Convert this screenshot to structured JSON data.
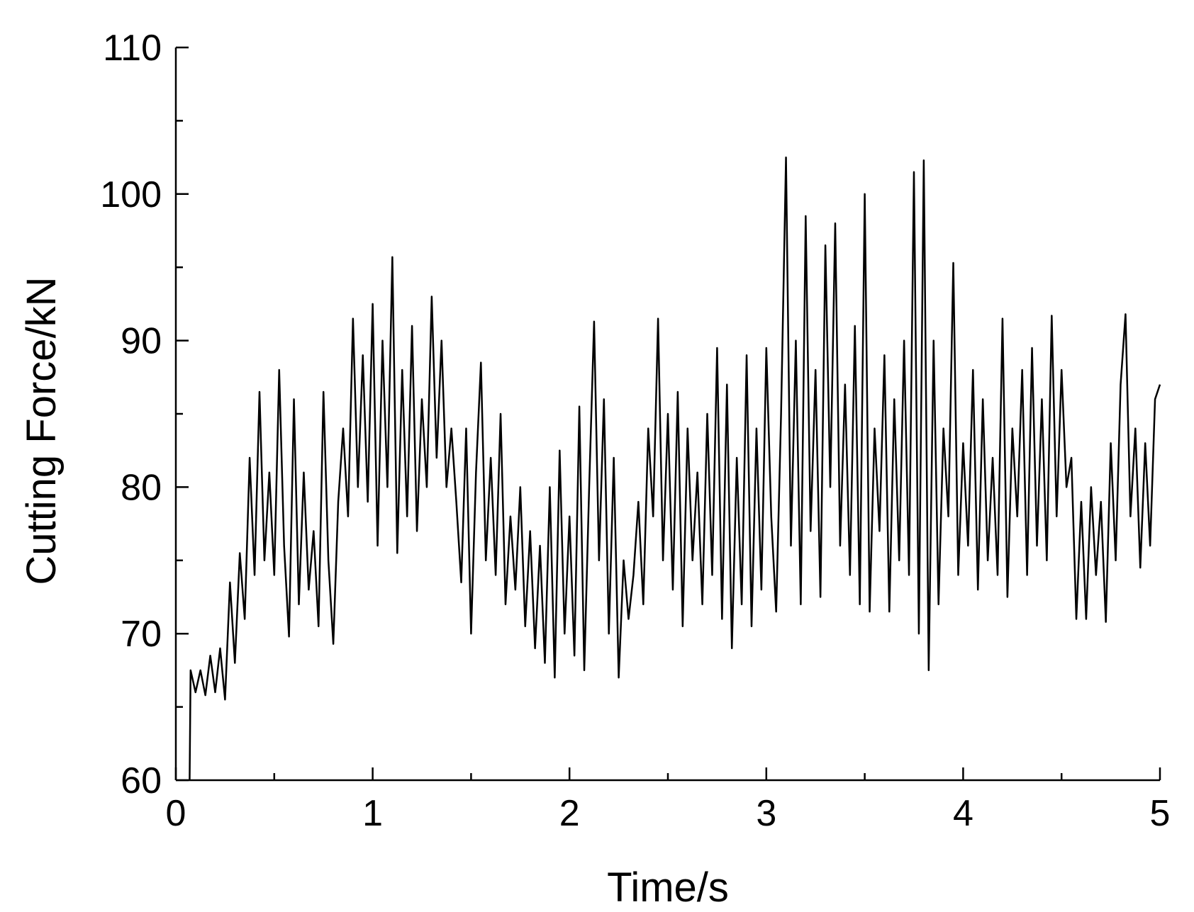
{
  "chart_data": {
    "type": "line",
    "x_label": "Time/s",
    "y_label": "Cutting Force/kN",
    "xlim": [
      0,
      5
    ],
    "ylim": [
      60,
      110
    ],
    "xticks": [
      0,
      1,
      2,
      3,
      4,
      5
    ],
    "yticks": [
      60,
      70,
      80,
      90,
      100,
      110
    ],
    "xminorticks": [
      0.5,
      1.5,
      2.5,
      3.5,
      4.5
    ],
    "yminorticks": [
      65,
      75,
      85,
      95,
      105
    ],
    "color": "#000000",
    "x": [
      0.07,
      0.075,
      0.1,
      0.125,
      0.15,
      0.175,
      0.2,
      0.225,
      0.25,
      0.275,
      0.3,
      0.325,
      0.35,
      0.375,
      0.4,
      0.425,
      0.45,
      0.475,
      0.5,
      0.525,
      0.55,
      0.575,
      0.6,
      0.625,
      0.65,
      0.675,
      0.7,
      0.725,
      0.75,
      0.775,
      0.8,
      0.825,
      0.85,
      0.875,
      0.9,
      0.925,
      0.95,
      0.975,
      1.0,
      1.025,
      1.05,
      1.075,
      1.1,
      1.125,
      1.15,
      1.175,
      1.2,
      1.225,
      1.25,
      1.275,
      1.3,
      1.325,
      1.35,
      1.375,
      1.4,
      1.425,
      1.45,
      1.475,
      1.5,
      1.525,
      1.55,
      1.575,
      1.6,
      1.625,
      1.65,
      1.675,
      1.7,
      1.725,
      1.75,
      1.775,
      1.8,
      1.825,
      1.85,
      1.875,
      1.9,
      1.925,
      1.95,
      1.975,
      2.0,
      2.025,
      2.05,
      2.075,
      2.1,
      2.125,
      2.15,
      2.175,
      2.2,
      2.225,
      2.25,
      2.275,
      2.3,
      2.325,
      2.35,
      2.375,
      2.4,
      2.425,
      2.45,
      2.475,
      2.5,
      2.525,
      2.55,
      2.575,
      2.6,
      2.625,
      2.65,
      2.675,
      2.7,
      2.725,
      2.75,
      2.775,
      2.8,
      2.825,
      2.85,
      2.875,
      2.9,
      2.925,
      2.95,
      2.975,
      3.0,
      3.025,
      3.05,
      3.075,
      3.1,
      3.125,
      3.15,
      3.175,
      3.2,
      3.225,
      3.25,
      3.275,
      3.3,
      3.325,
      3.35,
      3.375,
      3.4,
      3.425,
      3.45,
      3.475,
      3.5,
      3.525,
      3.55,
      3.575,
      3.6,
      3.625,
      3.65,
      3.675,
      3.7,
      3.725,
      3.75,
      3.775,
      3.8,
      3.825,
      3.85,
      3.875,
      3.9,
      3.925,
      3.95,
      3.975,
      4.0,
      4.025,
      4.05,
      4.075,
      4.1,
      4.125,
      4.15,
      4.175,
      4.2,
      4.225,
      4.25,
      4.275,
      4.3,
      4.325,
      4.35,
      4.375,
      4.4,
      4.425,
      4.45,
      4.475,
      4.5,
      4.525,
      4.55,
      4.575,
      4.6,
      4.625,
      4.65,
      4.675,
      4.7,
      4.725,
      4.75,
      4.775,
      4.8,
      4.825,
      4.85,
      4.875,
      4.9,
      4.925,
      4.95,
      4.975,
      5.0
    ],
    "values": [
      60,
      67.5,
      66,
      67.5,
      65.8,
      68.5,
      66,
      69,
      65.5,
      73.5,
      68,
      75.5,
      71,
      82,
      74,
      86.5,
      75,
      81,
      74,
      88,
      76,
      69.8,
      86,
      72,
      81,
      73,
      77,
      70.5,
      86.5,
      75,
      69.3,
      79,
      84,
      78,
      91.5,
      80,
      89,
      79,
      92.5,
      76,
      90,
      80,
      95.7,
      75.5,
      88,
      78,
      91,
      77,
      86,
      80,
      93,
      82,
      90,
      80,
      84,
      79,
      73.5,
      84,
      70,
      81,
      88.5,
      75,
      82,
      74,
      85,
      72,
      78,
      73,
      80,
      70.5,
      77,
      69,
      76,
      68,
      80,
      67,
      82.5,
      70,
      78,
      68.5,
      85.5,
      67.5,
      80,
      91.3,
      75,
      86,
      70,
      82,
      67,
      75,
      71,
      74,
      79,
      72,
      84,
      78,
      91.5,
      75,
      85,
      73,
      86.5,
      70.5,
      84,
      75,
      81,
      72,
      85,
      74,
      89.5,
      71,
      87,
      69,
      82,
      72,
      89,
      70.5,
      84,
      73,
      89.5,
      78,
      71.5,
      85,
      102.5,
      76,
      90,
      72,
      98.5,
      77,
      88,
      72.5,
      96.5,
      80,
      98,
      76,
      87,
      74,
      91,
      72,
      100,
      71.5,
      84,
      77,
      89,
      71.5,
      86,
      75,
      90,
      74,
      101.5,
      70,
      102.3,
      67.5,
      90,
      72,
      84,
      78,
      95.3,
      74,
      83,
      76,
      88,
      73,
      86,
      75,
      82,
      74,
      91.5,
      72.5,
      84,
      78,
      88,
      74,
      89.5,
      76,
      86,
      75,
      91.7,
      78,
      88,
      80,
      82,
      71,
      79,
      71,
      80,
      74,
      79,
      70.8,
      83,
      75,
      87,
      91.8,
      78,
      84,
      74.5,
      83,
      76,
      86,
      87
    ]
  }
}
